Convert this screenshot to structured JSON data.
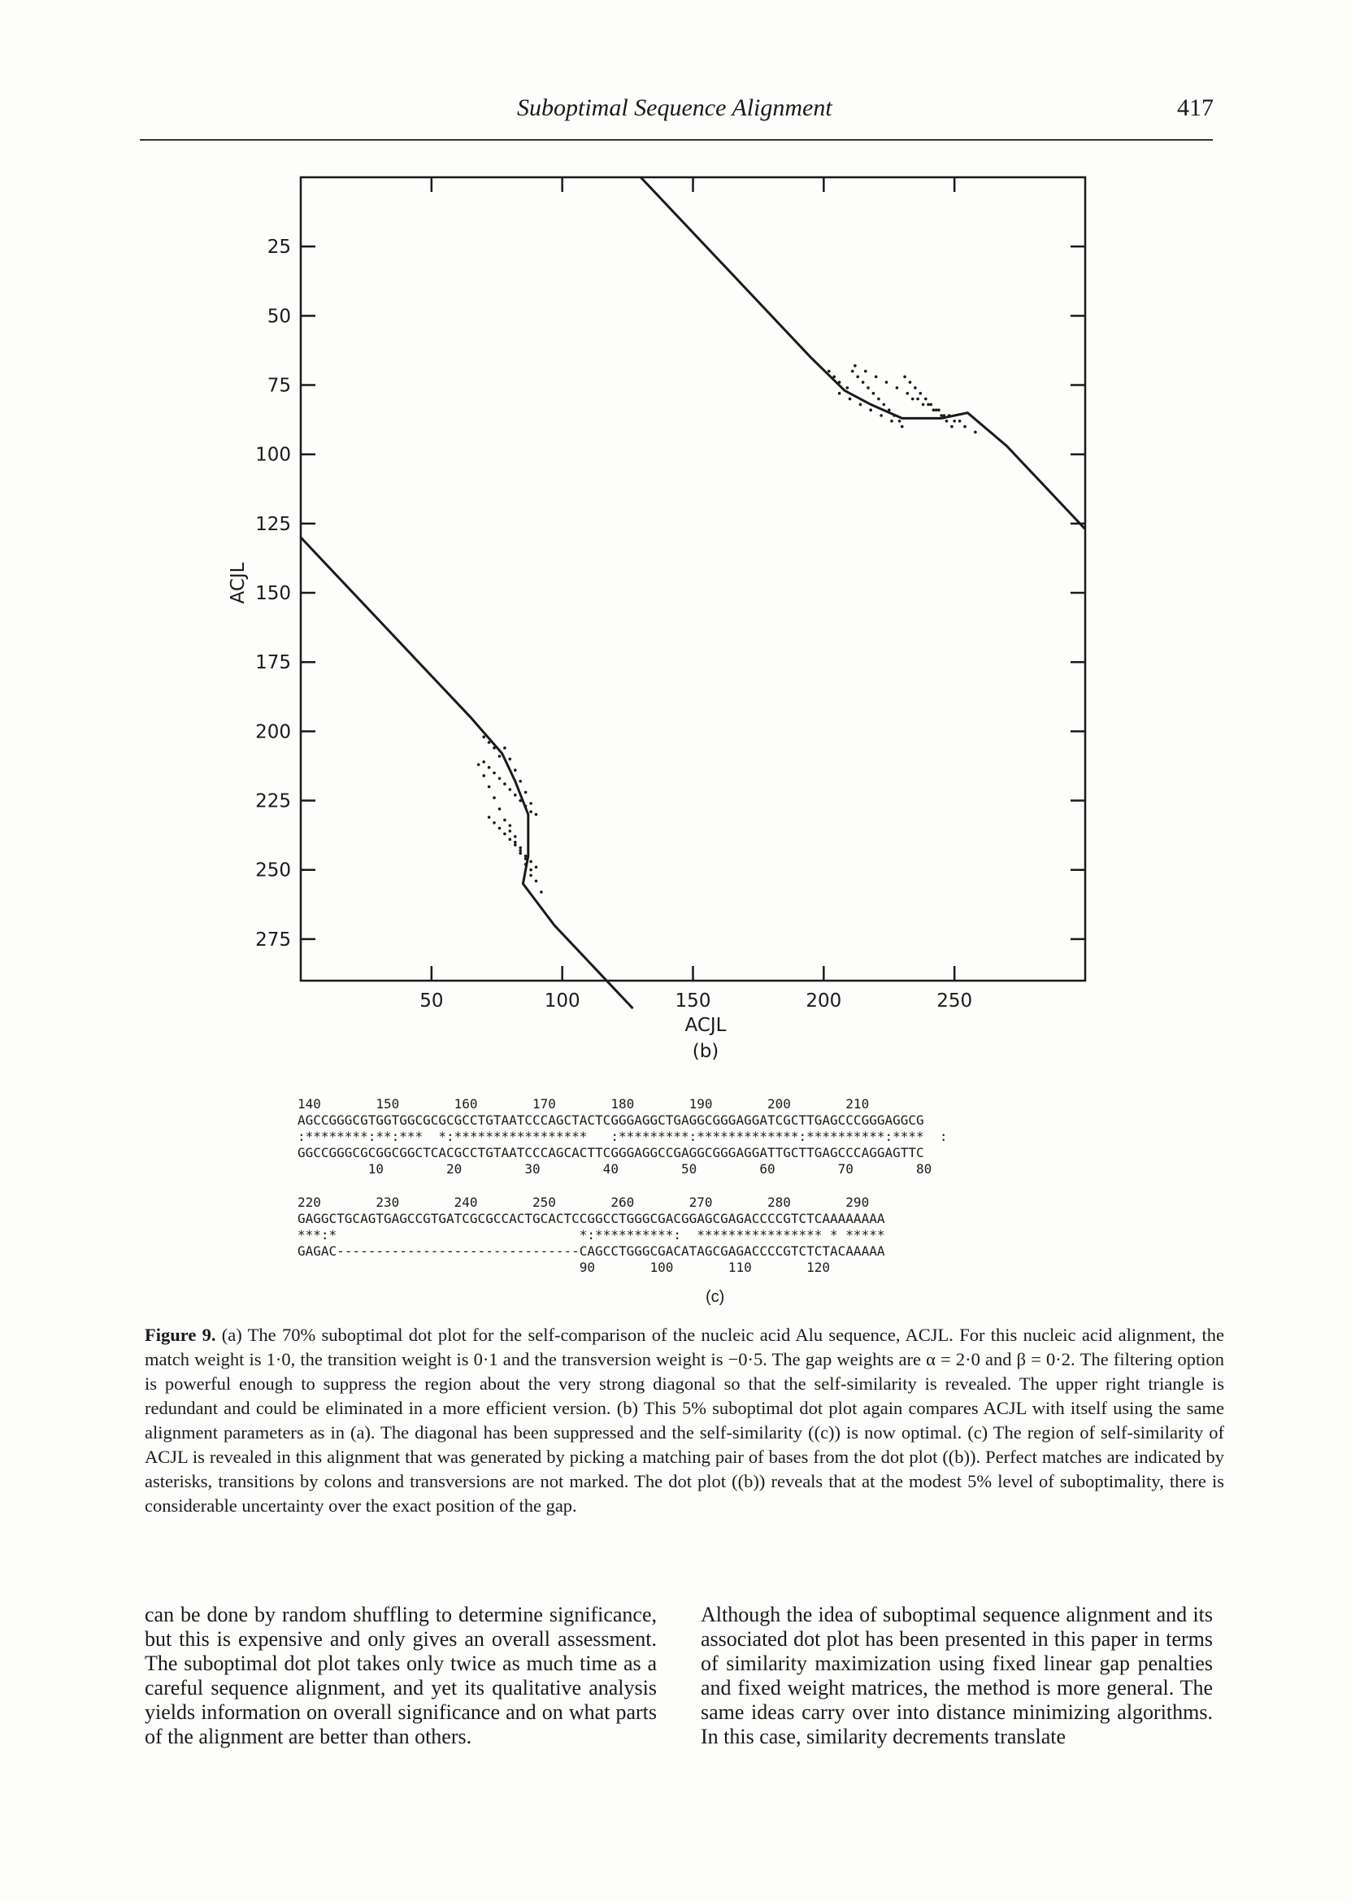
{
  "header": {
    "running_title": "Suboptimal Sequence Alignment",
    "page_number": "417"
  },
  "figure": {
    "panel_label": "(b)",
    "chart_data": {
      "type": "scatter",
      "title": "",
      "xlabel": "ACJL",
      "ylabel": "ACJL",
      "xlim": [
        0,
        300
      ],
      "ylim": [
        0,
        290
      ],
      "y_inverted": true,
      "x_tick_labels": [
        "50",
        "100",
        "150",
        "200",
        "250"
      ],
      "x_ticks": [
        50,
        100,
        150,
        200,
        250
      ],
      "y_tick_labels": [
        "25",
        "50",
        "75",
        "100",
        "125",
        "150",
        "175",
        "200",
        "225",
        "250",
        "275"
      ],
      "y_ticks": [
        25,
        50,
        75,
        100,
        125,
        150,
        175,
        200,
        225,
        250,
        275
      ],
      "grid": false,
      "series": [
        {
          "kind": "line",
          "x": [
            130,
            195,
            208,
            218,
            230,
            245,
            255,
            270,
            300
          ],
          "y": [
            0,
            65,
            77,
            82,
            87,
            87,
            85,
            97,
            127
          ]
        },
        {
          "kind": "line",
          "x": [
            0,
            65,
            77,
            82,
            87,
            87,
            85,
            97,
            127
          ],
          "y": [
            130,
            195,
            208,
            218,
            230,
            245,
            255,
            270,
            300
          ]
        },
        {
          "kind": "points",
          "x": [
            202,
            204,
            206,
            209,
            211,
            213,
            215,
            217,
            219,
            221,
            223,
            225,
            227,
            229,
            231,
            233,
            235,
            237,
            239,
            241,
            243,
            245,
            247,
            249,
            212,
            216,
            220,
            224,
            228,
            232,
            236,
            240,
            244,
            248,
            252,
            206,
            210,
            214,
            218,
            222,
            226,
            230,
            234,
            238,
            242,
            246,
            250,
            254,
            258
          ],
          "y": [
            70,
            72,
            74,
            76,
            70,
            72,
            74,
            76,
            78,
            80,
            82,
            84,
            86,
            88,
            72,
            74,
            76,
            78,
            80,
            82,
            84,
            86,
            88,
            90,
            68,
            70,
            72,
            74,
            76,
            78,
            80,
            82,
            84,
            86,
            88,
            78,
            80,
            82,
            84,
            86,
            88,
            90,
            80,
            82,
            84,
            86,
            88,
            90,
            92
          ]
        },
        {
          "kind": "points",
          "x": [
            70,
            72,
            74,
            76,
            70,
            72,
            74,
            76,
            78,
            80,
            82,
            84,
            86,
            88,
            72,
            74,
            76,
            78,
            80,
            82,
            84,
            86,
            88,
            90,
            68,
            70,
            72,
            74,
            76,
            78,
            80,
            82,
            84,
            86,
            88,
            78,
            80,
            82,
            84,
            86,
            88,
            90,
            80,
            82,
            84,
            86,
            88,
            90,
            92
          ],
          "y": [
            202,
            204,
            206,
            209,
            211,
            213,
            215,
            217,
            219,
            221,
            223,
            225,
            227,
            229,
            231,
            233,
            235,
            237,
            239,
            241,
            243,
            245,
            247,
            249,
            212,
            216,
            220,
            224,
            228,
            232,
            236,
            240,
            244,
            248,
            252,
            206,
            210,
            214,
            218,
            222,
            226,
            230,
            234,
            238,
            242,
            246,
            250,
            254,
            258
          ]
        }
      ]
    }
  },
  "alignment": {
    "block1": {
      "top_numbers": "140       150       160       170       180       190       200       210",
      "top_seq": "AGCCGGGCGTGGTGGCGCGCGCCTGTAATCCCAGCTACTCGGGAGGCTGAGGCGGGAGGATCGCTTGAGCCCGGGAGGCG",
      "match_line": ":********:**:***  *:*****************   :*********:*************:**********:****  :",
      "bottom_seq": "GGCCGGGCGCGGCGGCTCACGCCTGTAATCCCAGCACTTCGGGAGGCCGAGGCGGGAGGATTGCTTGAGCCCAGGAGTTC",
      "bottom_numbers": "         10        20        30        40        50        60        70        80"
    },
    "block2": {
      "top_numbers": "220       230       240       250       260       270       280       290",
      "top_seq": "GAGGCTGCAGTGAGCCGTGATCGCGCCACTGCACTCCGGCCTGGGCGACGGAGCGAGACCCCGTCTCAAAAAAAA",
      "match_line": "***:*                               *:**********:  **************** * *****",
      "bottom_seq": "GAGAC-------------------------------CAGCCTGGGCGACATAGCGAGACCCCGTCTCTACAAAAA",
      "bottom_numbers": "                                    90       100       110       120"
    },
    "panel_label": "(c)"
  },
  "caption": {
    "label": "Figure 9.",
    "text": " (a) The 70% suboptimal dot plot for the self-comparison of the nucleic acid Alu sequence, ACJL. For this nucleic acid alignment, the match weight is 1·0, the transition weight is 0·1 and the transversion weight is −0·5. The gap weights are α = 2·0 and β = 0·2. The filtering option is powerful enough to suppress the region about the very strong diagonal so that the self-similarity is revealed. The upper right triangle is redundant and could be eliminated in a more efficient version. (b) This 5% suboptimal dot plot again compares ACJL with itself using the same alignment parameters as in (a). The diagonal has been suppressed and the self-similarity ((c)) is now optimal. (c) The region of self-similarity of ACJL is revealed in this alignment that was generated by picking a matching pair of bases from the dot plot ((b)). Perfect matches are indicated by asterisks, transitions by colons and transversions are not marked. The dot plot ((b)) reveals that at the modest 5% level of suboptimality, there is considerable uncertainty over the exact position of the gap."
  },
  "body": {
    "left_column": "can be done by random shuffling to determine significance, but this is expensive and only gives an overall assessment. The suboptimal dot plot takes only twice as much time as a careful sequence alignment, and yet its qualitative analysis yields information on overall significance and on what parts of the alignment are better than others.",
    "right_column": "Although the idea of suboptimal sequence alignment and its associated dot plot has been presented in this paper in terms of similarity maximization using fixed linear gap penalties and fixed weight matrices, the method is more general. The same ideas carry over into distance minimizing algorithms. In this case, similarity decrements translate"
  },
  "colors": {
    "ink": "#1a1a1a",
    "paper": "#fdfdfb"
  }
}
